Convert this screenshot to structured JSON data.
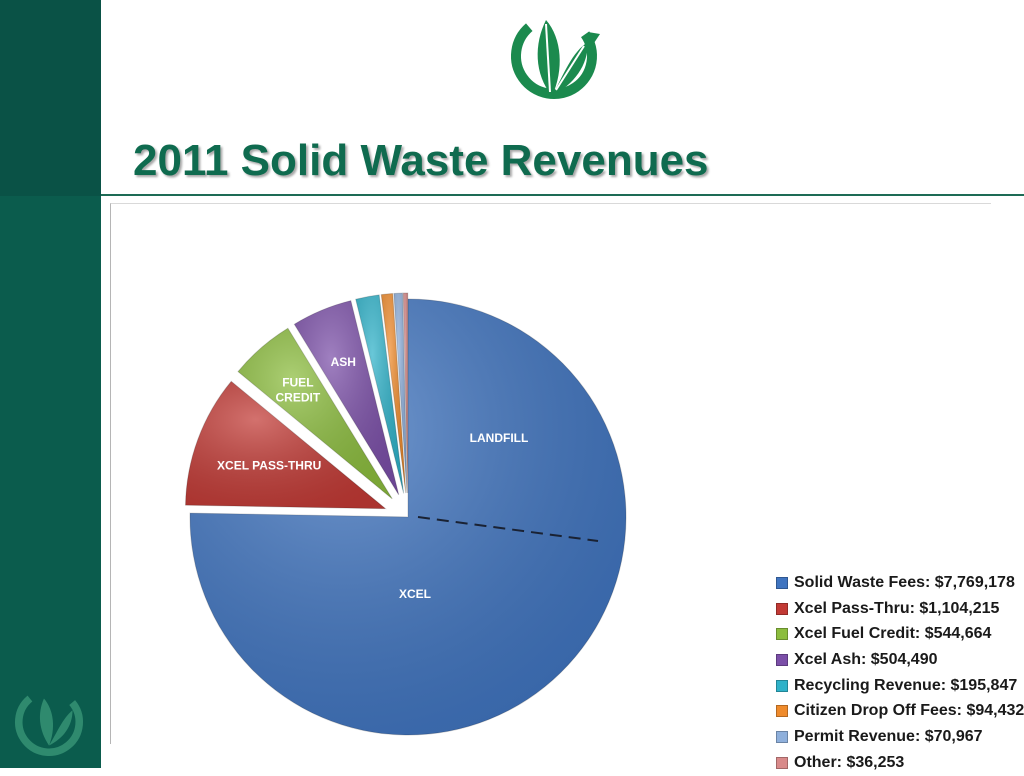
{
  "title": "2011 Solid Waste Revenues",
  "colors": {
    "sidebar": "#0b5c4d",
    "title": "#0f6b4f",
    "logo": "#1b8a4e"
  },
  "logo_icon": "leaf-cycle-logo",
  "chart_data": {
    "type": "pie",
    "title": "",
    "slices": [
      {
        "name": "Solid Waste Fees:  $7,769,178",
        "value": 7769178,
        "color": "#3f74c0",
        "label_lines": []
      },
      {
        "name": "Xcel Pass-Thru:  $1,104,215",
        "value": 1104215,
        "color": "#c23a35",
        "label_lines": [
          "XCEL PASS-THRU"
        ]
      },
      {
        "name": "Xcel Fuel Credit:  $544,664",
        "value": 544664,
        "color": "#8cbd3e",
        "label_lines": [
          "FUEL",
          "CREDIT"
        ]
      },
      {
        "name": "Xcel Ash: $504,490",
        "value": 504490,
        "color": "#7b4fa8",
        "label_lines": [
          "ASH"
        ]
      },
      {
        "name": "Recycling Revenue:  $195,847",
        "value": 195847,
        "color": "#2fb2c9",
        "label_lines": []
      },
      {
        "name": "Citizen Drop Off Fees:  $94,432",
        "value": 94432,
        "color": "#ef8b2c",
        "label_lines": []
      },
      {
        "name": "Permit Revenue:  $70,967",
        "value": 70967,
        "color": "#8fb0dc",
        "label_lines": []
      },
      {
        "name": "Other:  $36,253",
        "value": 36253,
        "color": "#d98a8a",
        "label_lines": []
      }
    ],
    "sub_labels": [
      "LANDFILL",
      "XCEL"
    ],
    "legend_position": "right"
  }
}
